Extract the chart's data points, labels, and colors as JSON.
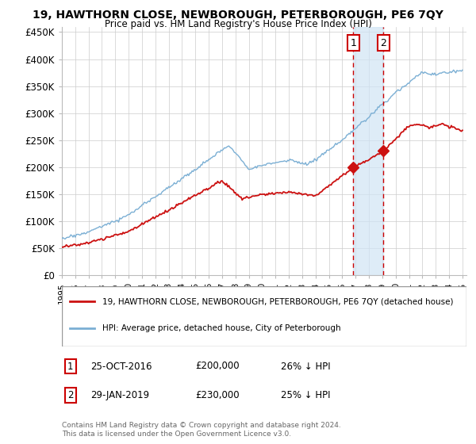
{
  "title": "19, HAWTHORN CLOSE, NEWBOROUGH, PETERBOROUGH, PE6 7QY",
  "subtitle": "Price paid vs. HM Land Registry's House Price Index (HPI)",
  "hpi_label": "HPI: Average price, detached house, City of Peterborough",
  "prop_label": "19, HAWTHORN CLOSE, NEWBOROUGH, PETERBOROUGH, PE6 7QY (detached house)",
  "hpi_color": "#7bafd4",
  "prop_color": "#cc1111",
  "vline_color": "#cc0000",
  "shade_color": "#d0e4f5",
  "ylim": [
    0,
    460000
  ],
  "yticks": [
    0,
    50000,
    100000,
    150000,
    200000,
    250000,
    300000,
    350000,
    400000,
    450000
  ],
  "ytick_labels": [
    "£0",
    "£50K",
    "£100K",
    "£150K",
    "£200K",
    "£250K",
    "£300K",
    "£350K",
    "£400K",
    "£450K"
  ],
  "sale1_date": "25-OCT-2016",
  "sale1_price": "£200,000",
  "sale1_hpi": "26% ↓ HPI",
  "sale1_year": 2016.82,
  "sale1_value": 200000,
  "sale2_date": "29-JAN-2019",
  "sale2_price": "£230,000",
  "sale2_hpi": "25% ↓ HPI",
  "sale2_year": 2019.08,
  "sale2_value": 230000,
  "footnote": "Contains HM Land Registry data © Crown copyright and database right 2024.\nThis data is licensed under the Open Government Licence v3.0.",
  "bg_color": "#ffffff",
  "grid_color": "#cccccc"
}
